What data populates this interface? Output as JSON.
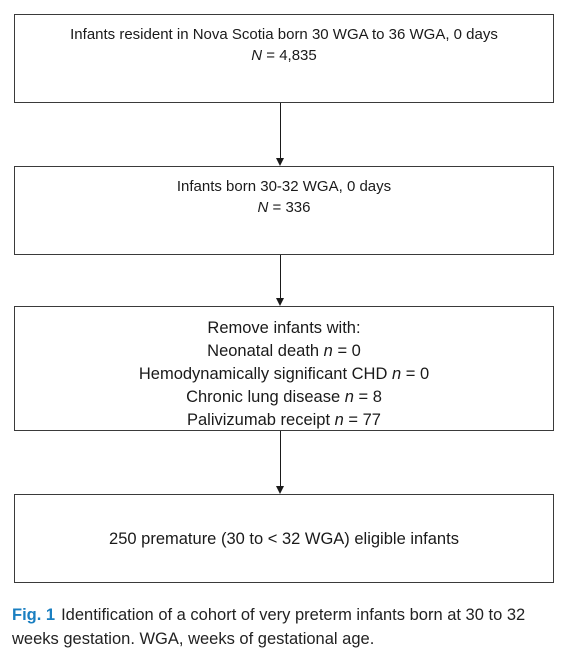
{
  "boxes": {
    "box1": {
      "line1": "Infants resident in Nova Scotia born 30 WGA to 36 WGA, 0 days",
      "n_symbol": "N",
      "n_value": " = 4,835"
    },
    "box2": {
      "line1": "Infants born 30-32 WGA, 0 days",
      "n_symbol": "N",
      "n_value": " = 336"
    },
    "box3": {
      "heading": "Remove infants with:",
      "criteria": [
        {
          "label": "Neonatal death ",
          "symbol": "n",
          "value": " = 0"
        },
        {
          "label": "Hemodynamically significant CHD ",
          "symbol": "n",
          "value": " = 0"
        },
        {
          "label": "Chronic lung disease ",
          "symbol": "n",
          "value": " = 8"
        },
        {
          "label": "Palivizumab receipt ",
          "symbol": "n",
          "value": " = 77"
        }
      ]
    },
    "box4": {
      "text": "250 premature (30 to < 32 WGA) eligible infants"
    }
  },
  "caption": {
    "label": "Fig. 1",
    "text": "Identification of a cohort of very preterm infants born at 30 to 32 weeks gestation. WGA, weeks of gestational age."
  },
  "colors": {
    "caption_label": "#1a7fc1",
    "border": "#3a3a3a",
    "arrow": "#1a1a1a"
  }
}
